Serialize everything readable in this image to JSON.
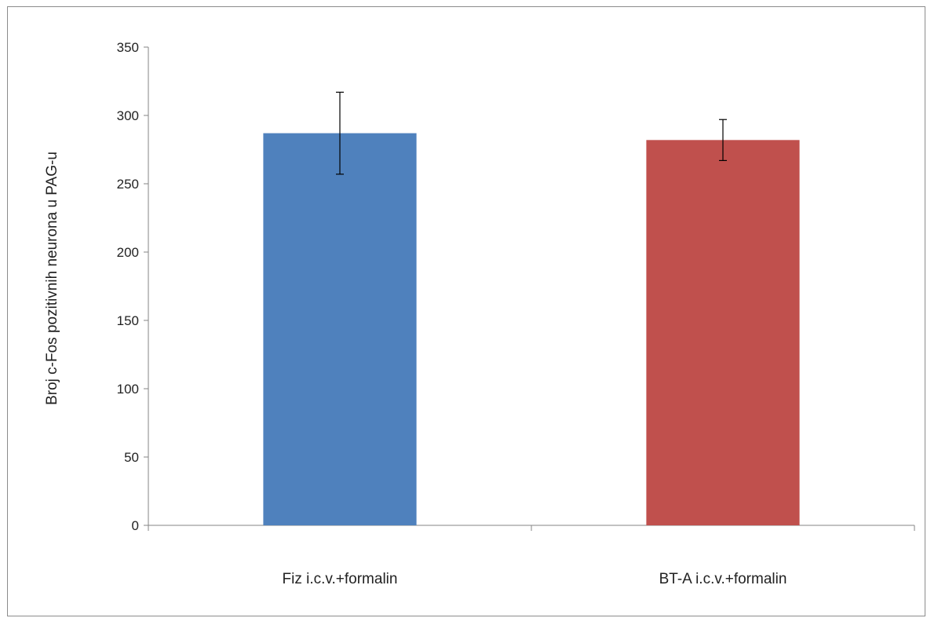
{
  "chart_data": {
    "type": "bar",
    "title": "",
    "xlabel": "",
    "ylabel": "Broj c-Fos pozitivnih neurona u PAG-u",
    "categories": [
      "Fiz i.c.v.+formalin",
      "BT-A i.c.v.+formalin"
    ],
    "values": [
      287,
      282
    ],
    "errors": [
      30,
      15
    ],
    "colors": [
      "#4f81bd",
      "#c0504d"
    ],
    "ylim": [
      0,
      350
    ],
    "yticks": [
      "0",
      "50",
      "100",
      "150",
      "200",
      "250",
      "300",
      "350"
    ],
    "grid": false,
    "legend": "none"
  }
}
